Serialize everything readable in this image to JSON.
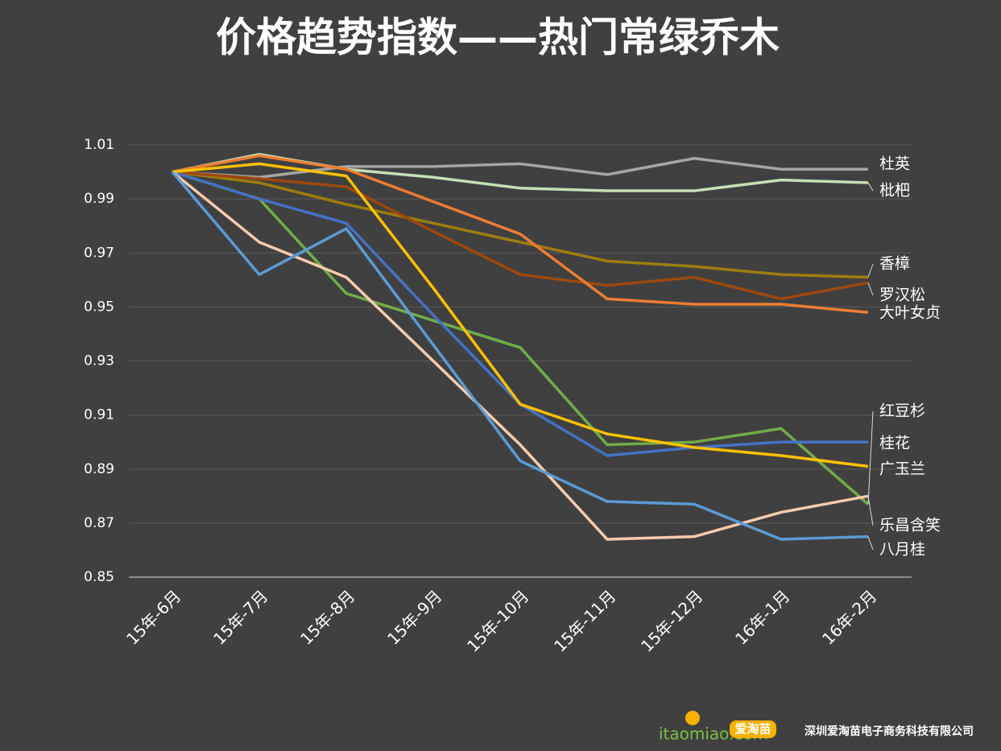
{
  "chart_data": {
    "type": "line",
    "title": "价格趋势指数——热门常绿乔木",
    "categories": [
      "15年-6月",
      "15年-7月",
      "15年-8月",
      "15年-9月",
      "15年-10月",
      "15年-11月",
      "15年-12月",
      "16年-1月",
      "16年-2月"
    ],
    "ylim": [
      0.85,
      1.01
    ],
    "yticks": [
      0.85,
      0.87,
      0.89,
      0.91,
      0.93,
      0.95,
      0.97,
      0.99,
      1.01
    ],
    "grid": true,
    "series": [
      {
        "name": "杜英",
        "color": "#a5a5a5",
        "values": [
          1.0,
          0.998,
          1.002,
          1.002,
          1.003,
          0.999,
          1.005,
          1.001,
          1.001
        ]
      },
      {
        "name": "枇杷",
        "color": "#c5e0b4",
        "values": [
          1.0,
          1.0065,
          1.001,
          0.998,
          0.994,
          0.993,
          0.993,
          0.997,
          0.996
        ]
      },
      {
        "name": "香樟",
        "color": "#9c7d0e",
        "values": [
          1.0,
          0.996,
          0.988,
          0.981,
          0.974,
          0.967,
          0.965,
          0.962,
          0.961
        ]
      },
      {
        "name": "罗汉松",
        "color": "#9e480e",
        "values": [
          1.0,
          0.9975,
          0.9945,
          0.978,
          0.962,
          0.958,
          0.961,
          0.953,
          0.959
        ]
      },
      {
        "name": "大叶女贞",
        "color": "#ed7d31",
        "values": [
          1.0,
          1.006,
          1.001,
          0.989,
          0.977,
          0.953,
          0.951,
          0.951,
          0.948
        ]
      },
      {
        "name": "红豆杉",
        "color": "#70ad47",
        "values": [
          1.0,
          0.99,
          0.955,
          0.945,
          0.935,
          0.899,
          0.9,
          0.905,
          0.877
        ]
      },
      {
        "name": "桂花",
        "color": "#4472c4",
        "values": [
          1.0,
          0.99,
          0.981,
          0.947,
          0.914,
          0.895,
          0.898,
          0.9,
          0.9
        ]
      },
      {
        "name": "广玉兰",
        "color": "#ffc000",
        "values": [
          1.0,
          1.003,
          0.9985,
          0.957,
          0.914,
          0.903,
          0.898,
          0.895,
          0.891
        ]
      },
      {
        "name": "乐昌含笑",
        "color": "#f8cbad",
        "values": [
          1.0,
          0.974,
          0.961,
          0.93,
          0.899,
          0.864,
          0.865,
          0.874,
          0.88
        ]
      },
      {
        "name": "八月桂",
        "color": "#5b9bd5",
        "values": [
          1.0,
          0.962,
          0.979,
          0.936,
          0.893,
          0.878,
          0.877,
          0.864,
          0.865
        ]
      }
    ]
  },
  "footer": {
    "logo": "itaomiao.com",
    "brand": "爱淘苗",
    "company": "深圳爱淘苗电子商务科技有限公司"
  }
}
